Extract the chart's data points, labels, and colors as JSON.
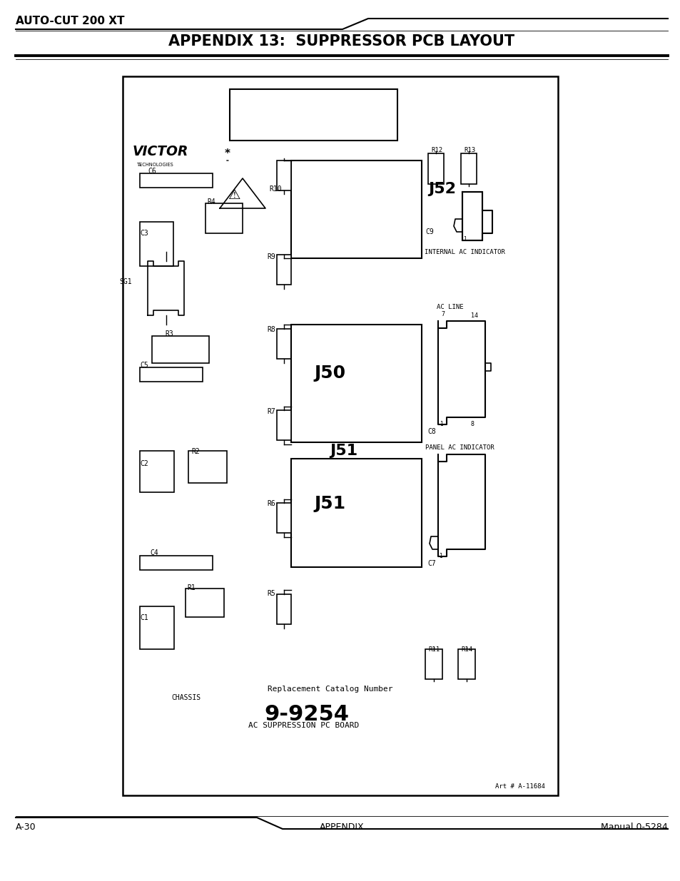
{
  "page_title_small": "AUTO-CUT 200 XT",
  "page_title_large": "APPENDIX 13:  SUPPRESSOR PCB LAYOUT",
  "footer_left": "A-30",
  "footer_center": "APPENDIX",
  "footer_right": "Manual 0-5284",
  "background": "#ffffff",
  "catalog_number": "9-9254",
  "catalog_label": "Replacement Catalog Number",
  "catalog_sub": "AC SUPPRESSION PC BOARD",
  "chassis_label": "CHASSIS",
  "art_number": "Art # A-11684",
  "internal_ac": "INTERNAL AC INDICATOR",
  "panel_ac": "PANEL AC INDICATOR",
  "ac_line": "AC LINE",
  "j52_label": "J52",
  "j50_label": "J50",
  "j51_label": "J51"
}
